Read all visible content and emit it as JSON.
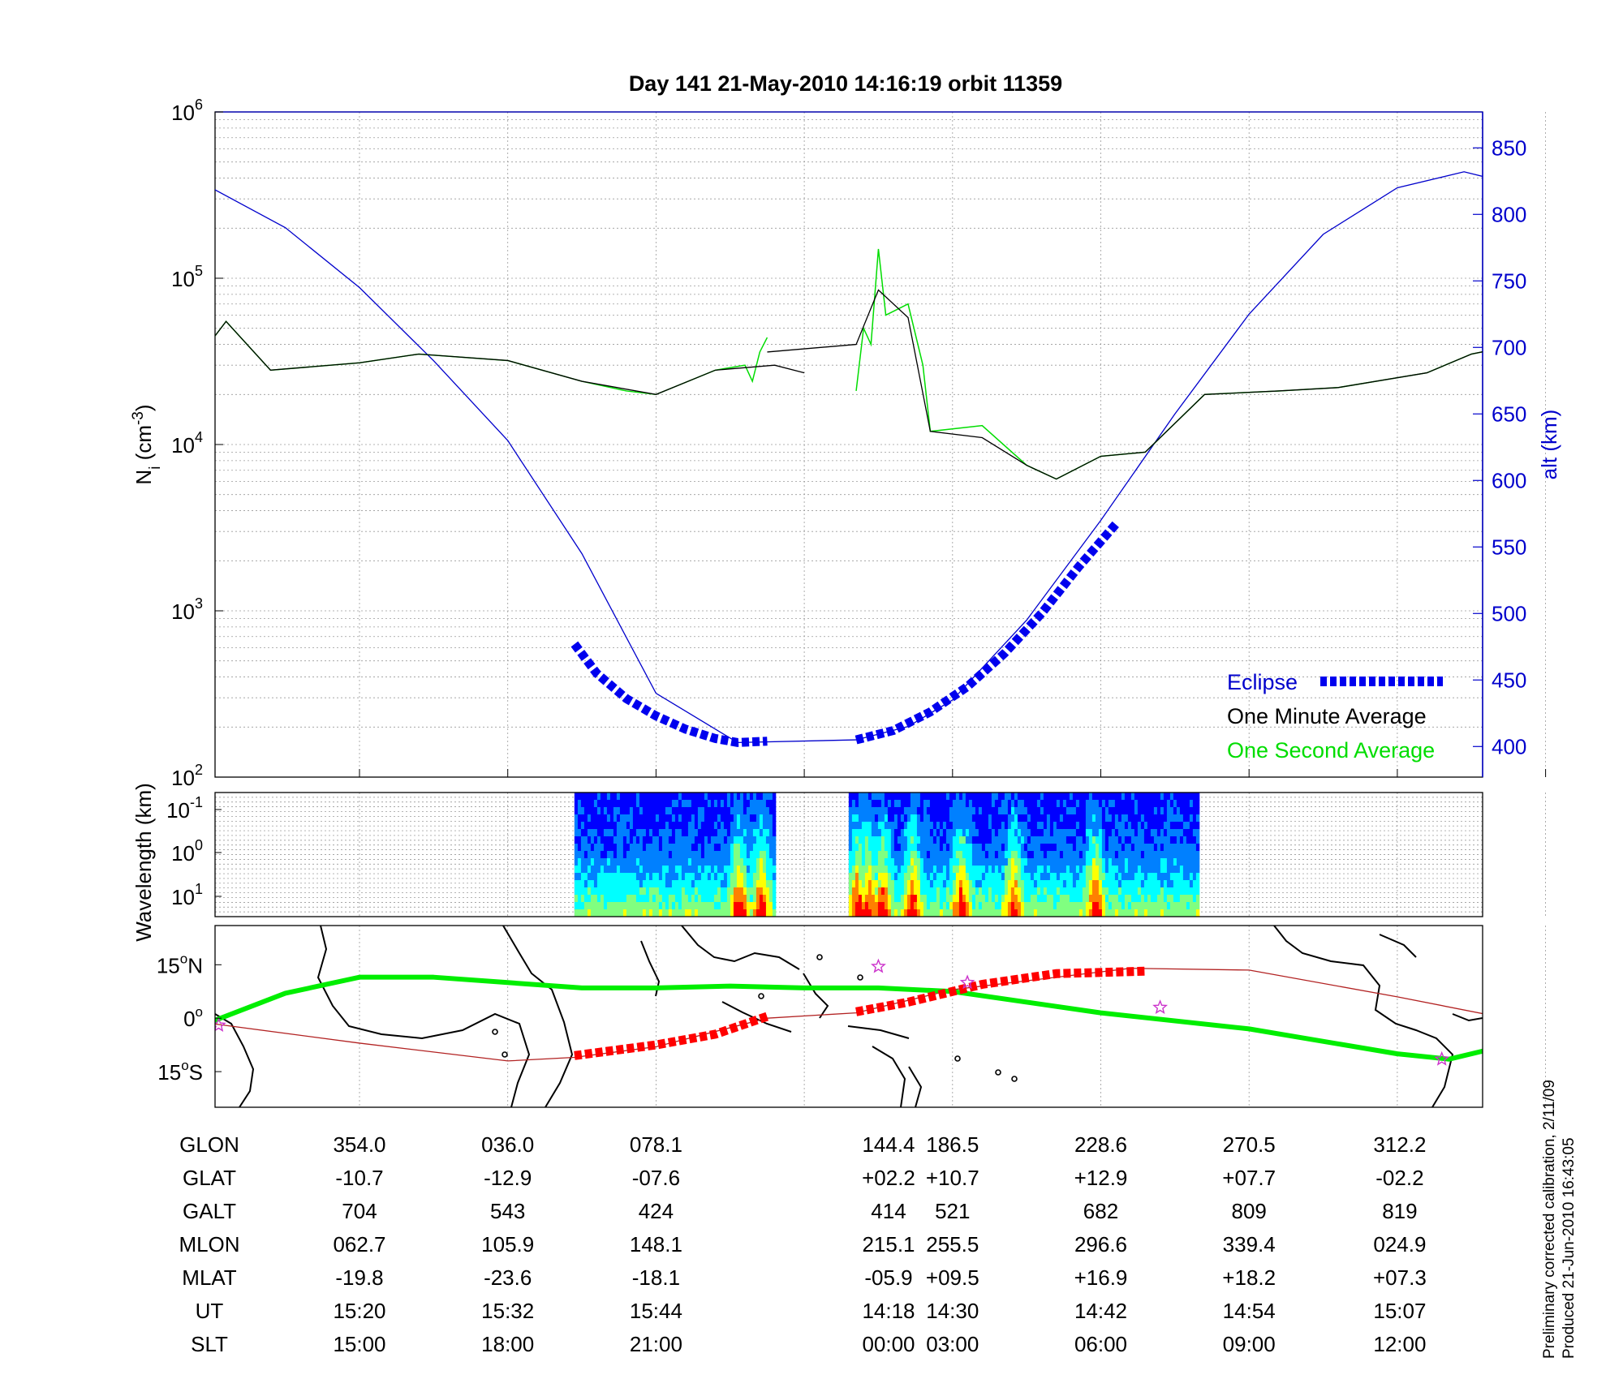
{
  "title": "Day 141  21-May-2010 14:16:19   orbit 11359",
  "colors": {
    "alt": "#0000cc",
    "one_minute": "#000000",
    "one_second": "#00dd00",
    "eclipse": "#0000ee",
    "ground_track": "#ff0000",
    "mag_equator": "#00ee00",
    "thin_track": "#b22222",
    "coast": "#000000",
    "star": "#cc33cc"
  },
  "chart_data": [
    {
      "type": "line",
      "name": "density-altitude",
      "x_slots": [
        0,
        1,
        2,
        3,
        4,
        5,
        6,
        7,
        8
      ],
      "x_range": [
        -1,
        8
      ],
      "y_scale": "log",
      "ylim": [
        100,
        1000000
      ],
      "y_ticks": [
        {
          "base": "10",
          "exp": "2"
        },
        {
          "base": "10",
          "exp": "3"
        },
        {
          "base": "10",
          "exp": "4"
        },
        {
          "base": "10",
          "exp": "5"
        },
        {
          "base": "10",
          "exp": "6"
        }
      ],
      "ylabel": {
        "main": "N",
        "sub": "i",
        "open": " (cm",
        "sup": "-3",
        "close": ")"
      },
      "y2label": "alt (km)",
      "y2lim": [
        377,
        877
      ],
      "y2_ticks": [
        "400",
        "450",
        "500",
        "550",
        "600",
        "650",
        "700",
        "750",
        "800",
        "850"
      ],
      "grid": true,
      "legend_position": "bottom-right",
      "legend": [
        "Eclipse",
        "One Minute Average",
        "One Second Average"
      ],
      "series": [
        {
          "name": "Eclipse",
          "segments": [
            [
              [
                1.45,
                477
              ],
              [
                1.6,
                455
              ],
              [
                1.8,
                436
              ],
              [
                2.0,
                423
              ],
              [
                2.2,
                413
              ],
              [
                2.4,
                406
              ],
              [
                2.55,
                403
              ],
              [
                2.75,
                404
              ]
            ],
            [
              [
                3.35,
                405
              ],
              [
                3.6,
                412
              ],
              [
                3.85,
                426
              ],
              [
                4.1,
                445
              ],
              [
                4.35,
                470
              ],
              [
                4.6,
                500
              ],
              [
                4.85,
                535
              ],
              [
                5.1,
                567
              ]
            ]
          ]
        },
        {
          "name": "One Minute Average",
          "points": [
            [
              -1,
              42000
            ],
            [
              -0.9,
              55000
            ],
            [
              -0.6,
              28000
            ],
            [
              0,
              31000
            ],
            [
              0.4,
              35000
            ],
            [
              1,
              32000
            ],
            [
              1.5,
              24000
            ],
            [
              2,
              20000
            ],
            [
              2.4,
              28000
            ],
            [
              2.8,
              30000
            ],
            [
              3.0,
              27000
            ],
            [
              2.75,
              36000
            ],
            [
              3.35,
              40000
            ],
            [
              3.5,
              85000
            ],
            [
              3.7,
              58000
            ],
            [
              3.85,
              12000
            ],
            [
              4.2,
              11000
            ],
            [
              4.5,
              7500
            ],
            [
              4.7,
              6200
            ],
            [
              5.0,
              8500
            ],
            [
              5.3,
              9000
            ],
            [
              5.7,
              20000
            ],
            [
              6.2,
              21000
            ],
            [
              6.6,
              22000
            ],
            [
              7.2,
              27000
            ],
            [
              7.5,
              35000
            ],
            [
              8,
              43000
            ]
          ]
        },
        {
          "name": "One Second Average",
          "points": [
            [
              -1,
              42000
            ],
            [
              -0.9,
              55000
            ],
            [
              -0.6,
              28000
            ],
            [
              0,
              31000
            ],
            [
              0.4,
              35000
            ],
            [
              1,
              32000
            ],
            [
              1.5,
              24000
            ],
            [
              1.8,
              21000
            ],
            [
              2,
              20000
            ],
            [
              2.4,
              28000
            ],
            [
              2.6,
              30000
            ],
            [
              2.65,
              24000
            ],
            [
              2.7,
              36000
            ],
            [
              2.75,
              44000
            ],
            [
              3.35,
              21000
            ],
            [
              3.4,
              50000
            ],
            [
              3.45,
              40000
            ],
            [
              3.5,
              150000
            ],
            [
              3.55,
              60000
            ],
            [
              3.7,
              70000
            ],
            [
              3.8,
              30000
            ],
            [
              3.85,
              12000
            ],
            [
              4.2,
              13000
            ],
            [
              4.5,
              7500
            ],
            [
              4.7,
              6200
            ],
            [
              5.0,
              8500
            ],
            [
              5.3,
              9000
            ],
            [
              5.7,
              20000
            ],
            [
              6.2,
              21000
            ],
            [
              6.6,
              22000
            ],
            [
              7.2,
              27000
            ],
            [
              7.5,
              35000
            ],
            [
              8,
              43000
            ]
          ]
        },
        {
          "name": "alt",
          "axis": "right",
          "points": [
            [
              -1,
              820
            ],
            [
              -0.5,
              790
            ],
            [
              0,
              745
            ],
            [
              0.5,
              690
            ],
            [
              1,
              630
            ],
            [
              1.5,
              545
            ],
            [
              2,
              440
            ],
            [
              2.55,
              403
            ],
            [
              3.35,
              405
            ],
            [
              3.7,
              415
            ],
            [
              4,
              435
            ],
            [
              4.5,
              495
            ],
            [
              5,
              570
            ],
            [
              5.5,
              650
            ],
            [
              6,
              725
            ],
            [
              6.5,
              785
            ],
            [
              7,
              820
            ],
            [
              7.45,
              832
            ],
            [
              8,
              817
            ]
          ]
        }
      ]
    },
    {
      "type": "heatmap",
      "name": "wavelength-spectrogram",
      "ylabel": {
        "text": "Wavelength (km)"
      },
      "y_ticks": [
        {
          "base": "10",
          "exp": "-1"
        },
        {
          "base": "10",
          "exp": "0"
        },
        {
          "base": "10",
          "exp": "1"
        }
      ],
      "segments": [
        [
          1.45,
          2.8
        ],
        [
          3.3,
          5.65
        ]
      ],
      "colormap": [
        "#000080",
        "#0000ff",
        "#0080ff",
        "#00ffff",
        "#80ff80",
        "#ffff00",
        "#ff8000",
        "#ff0000"
      ]
    },
    {
      "type": "map",
      "name": "orbit-track-map",
      "lat_ticks": [
        {
          "deg": "15",
          "o": "o",
          "hemi": "N"
        },
        {
          "deg": "0",
          "o": "o",
          "hemi": ""
        },
        {
          "deg": "15",
          "o": "o",
          "hemi": "S"
        }
      ],
      "ylim": [
        -25,
        26
      ],
      "series": [
        {
          "name": "ground-track",
          "points": [
            [
              -1,
              -1.5
            ],
            [
              0,
              -7
            ],
            [
              1,
              -12
            ],
            [
              1.45,
              -11
            ],
            [
              2,
              -8
            ],
            [
              2.75,
              0
            ],
            [
              3.35,
              1.5
            ],
            [
              4,
              8
            ],
            [
              5,
              13
            ],
            [
              5.2,
              14
            ],
            [
              6,
              13.5
            ],
            [
              7,
              6
            ],
            [
              8,
              -2.2
            ]
          ]
        },
        {
          "name": "eclipse-track",
          "segments": [
            [
              [
                1.45,
                -10.5
              ],
              [
                2.0,
                -7.5
              ],
              [
                2.4,
                -4.5
              ],
              [
                2.75,
                0.5
              ]
            ],
            [
              [
                3.35,
                1.8
              ],
              [
                3.7,
                4.5
              ],
              [
                4.2,
                9.5
              ],
              [
                4.7,
                12.5
              ],
              [
                5.3,
                13.2
              ]
            ]
          ]
        },
        {
          "name": "mag-equator",
          "points": [
            [
              -1,
              -1
            ],
            [
              -0.5,
              7
            ],
            [
              0,
              11.5
            ],
            [
              0.5,
              11.5
            ],
            [
              1,
              10
            ],
            [
              1.5,
              8.5
            ],
            [
              2,
              8.5
            ],
            [
              2.5,
              9
            ],
            [
              3,
              8.5
            ],
            [
              3.5,
              8.5
            ],
            [
              4,
              7.5
            ],
            [
              4.5,
              4.5
            ],
            [
              5,
              1.5
            ],
            [
              6,
              -3
            ],
            [
              7,
              -10
            ],
            [
              7.35,
              -11.5
            ],
            [
              7.7,
              -8
            ],
            [
              8,
              -1.5
            ]
          ]
        }
      ],
      "stars": [
        [
          -0.95,
          -2
        ],
        [
          3.5,
          14.5
        ],
        [
          4.1,
          10
        ],
        [
          5.4,
          3
        ],
        [
          7.3,
          -11.5
        ]
      ]
    }
  ],
  "table": {
    "rows": [
      {
        "label": "GLON",
        "values": [
          "354.0",
          "036.0",
          "078.1",
          "144.4",
          "186.5",
          "228.6",
          "270.5",
          "312.2"
        ]
      },
      {
        "label": "GLAT",
        "values": [
          "-10.7",
          "-12.9",
          "-07.6",
          "+02.2",
          "+10.7",
          "+12.9",
          "+07.7",
          "-02.2"
        ]
      },
      {
        "label": "GALT",
        "values": [
          "704",
          "543",
          "424",
          "414",
          "521",
          "682",
          "809",
          "819"
        ]
      },
      {
        "label": "MLON",
        "values": [
          "062.7",
          "105.9",
          "148.1",
          "215.1",
          "255.5",
          "296.6",
          "339.4",
          "024.9"
        ]
      },
      {
        "label": "MLAT",
        "values": [
          "-19.8",
          "-23.6",
          "-18.1",
          "-05.9",
          "+09.5",
          "+16.9",
          "+18.2",
          "+07.3"
        ]
      },
      {
        "label": "UT",
        "values": [
          "15:20",
          "15:32",
          "15:44",
          "14:18",
          "14:30",
          "14:42",
          "14:54",
          "15:07"
        ]
      },
      {
        "label": "SLT",
        "values": [
          "15:00",
          "18:00",
          "21:00",
          "00:00",
          "03:00",
          "06:00",
          "09:00",
          "12:00"
        ]
      }
    ]
  },
  "footer": {
    "line1": "Preliminary corrected calibration, 2/11/09",
    "line2": "Produced 21-Jun-2010 16:43:05"
  }
}
